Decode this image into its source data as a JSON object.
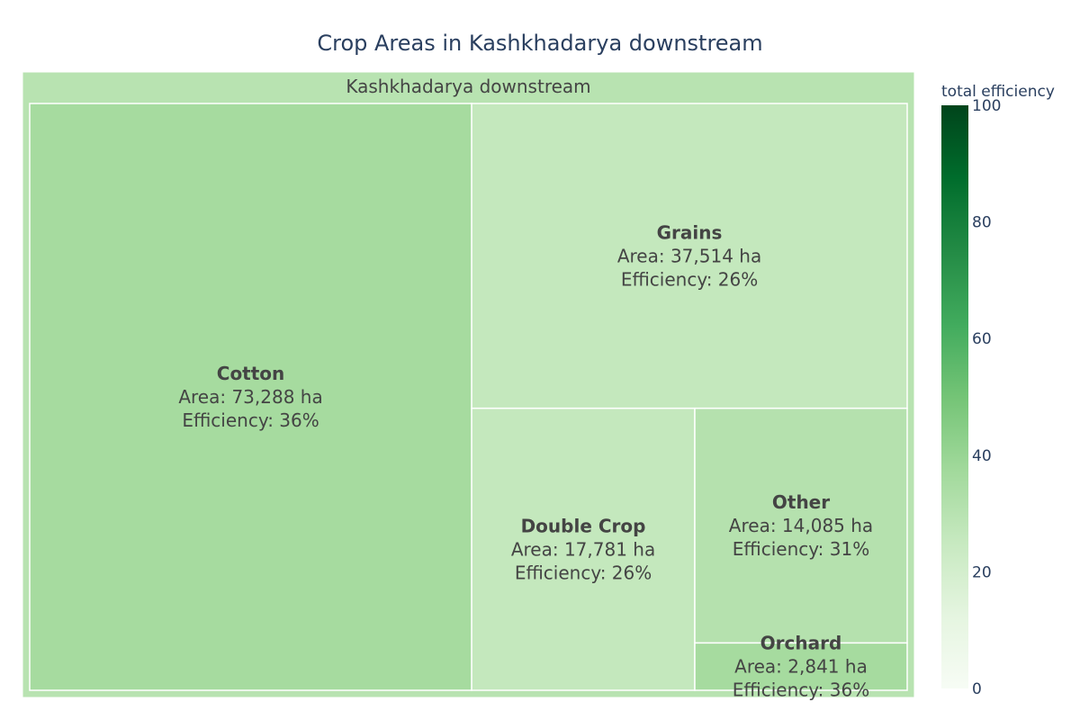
{
  "chart_data": {
    "type": "treemap",
    "title": "Crop Areas in Kashkhadarya downstream",
    "root": {
      "label": "Kashkhadarya downstream",
      "efficiency": 30.0
    },
    "tiles": [
      {
        "name": "Cotton",
        "area": 73288,
        "area_text": "Area: 73,288 ha",
        "efficiency": 36,
        "efficiency_text": "Efficiency: 36%"
      },
      {
        "name": "Grains",
        "area": 37514,
        "area_text": "Area: 37,514 ha",
        "efficiency": 26,
        "efficiency_text": "Efficiency: 26%"
      },
      {
        "name": "Double Crop",
        "area": 17781,
        "area_text": "Area: 17,781 ha",
        "efficiency": 26,
        "efficiency_text": "Efficiency: 26%"
      },
      {
        "name": "Other",
        "area": 14085,
        "area_text": "Area: 14,085 ha",
        "efficiency": 31,
        "efficiency_text": "Efficiency: 31%"
      },
      {
        "name": "Orchard",
        "area": 2841,
        "area_text": "Area: 2,841 ha",
        "efficiency": 36,
        "efficiency_text": "Efficiency: 36%"
      }
    ],
    "colorbar": {
      "title": "total efficiency",
      "range": [
        0,
        100
      ],
      "ticks": [
        0,
        20,
        40,
        60,
        80,
        100
      ],
      "colorscale": [
        [
          0.0,
          "#f7fcf5"
        ],
        [
          0.125,
          "#e5f5e0"
        ],
        [
          0.25,
          "#c7e9c0"
        ],
        [
          0.375,
          "#a1d99b"
        ],
        [
          0.5,
          "#74c476"
        ],
        [
          0.625,
          "#41ab5d"
        ],
        [
          0.75,
          "#238b45"
        ],
        [
          0.875,
          "#006d2c"
        ],
        [
          1.0,
          "#00441b"
        ]
      ]
    }
  }
}
